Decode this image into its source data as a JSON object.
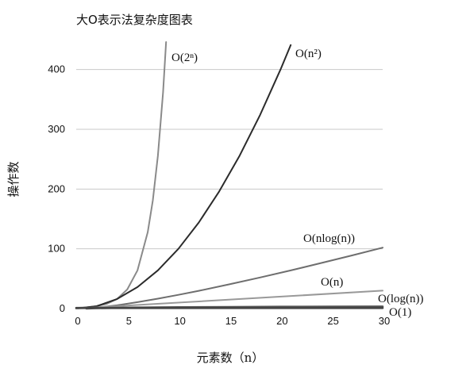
{
  "chart_data": {
    "type": "line",
    "title": "大O表示法复杂度图表",
    "xlabel": "元素数（n）",
    "ylabel": "操作数",
    "xlim": [
      0,
      30
    ],
    "ylim": [
      0,
      450
    ],
    "xticks": [
      0,
      5,
      10,
      15,
      20,
      25,
      30
    ],
    "yticks": [
      0,
      100,
      200,
      300,
      400
    ],
    "grid": true,
    "series": [
      {
        "name": "O(2ⁿ)",
        "color": "#8a8a8a",
        "x": [
          0,
          1,
          2,
          3,
          4,
          5,
          6,
          7,
          7.5,
          8,
          8.5,
          8.8
        ],
        "y": [
          1,
          2,
          4,
          8,
          16,
          32,
          64,
          128,
          181,
          256,
          362,
          446
        ]
      },
      {
        "name": "O(n²)",
        "color": "#2b2b2b",
        "x": [
          0,
          2,
          4,
          6,
          8,
          10,
          12,
          14,
          16,
          18,
          20,
          21
        ],
        "y": [
          0,
          4,
          16,
          36,
          64,
          100,
          144,
          196,
          256,
          324,
          400,
          441
        ]
      },
      {
        "name": "O(nlog(n))",
        "color": "#6e6e6e",
        "x": [
          1,
          2,
          4,
          6,
          8,
          10,
          12,
          15,
          18,
          21,
          24,
          27,
          30
        ],
        "y": [
          0,
          1.4,
          5.5,
          10.8,
          16.6,
          23,
          29.8,
          40.6,
          52,
          63.9,
          76.3,
          89,
          102
        ]
      },
      {
        "name": "O(n)",
        "color": "#999999",
        "x": [
          0,
          30
        ],
        "y": [
          0,
          30
        ]
      },
      {
        "name": "O(log(n))",
        "color": "#555555",
        "x": [
          1,
          2,
          5,
          10,
          15,
          20,
          25,
          30
        ],
        "y": [
          0,
          0.7,
          1.6,
          2.3,
          2.7,
          3,
          3.2,
          3.4
        ]
      },
      {
        "name": "O(1)",
        "color": "#444444",
        "x": [
          0,
          30
        ],
        "y": [
          1,
          1
        ]
      }
    ]
  }
}
